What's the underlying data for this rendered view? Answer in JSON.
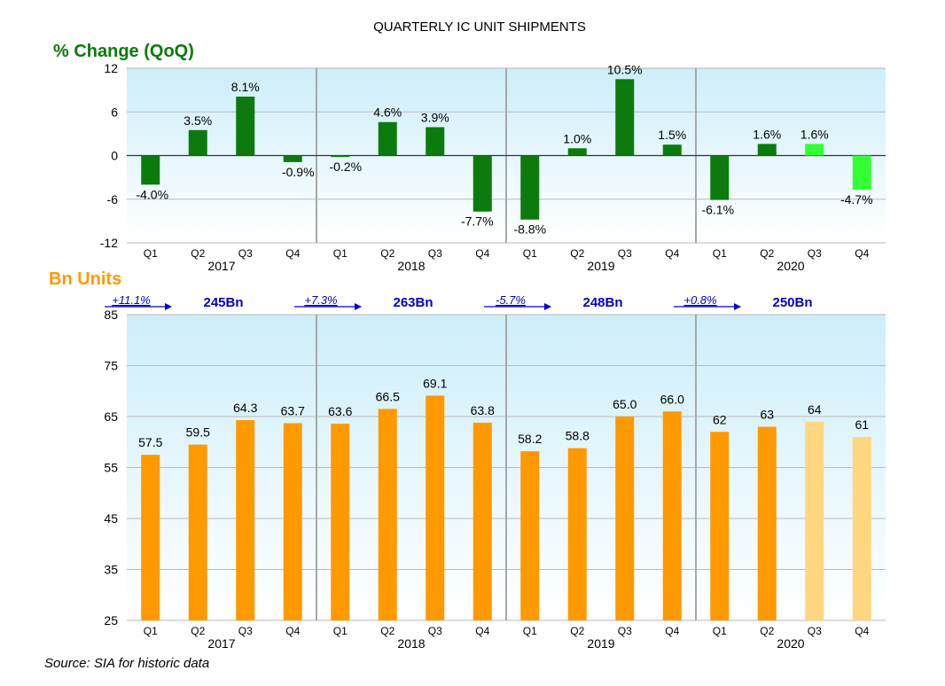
{
  "title": "QUARTERLY IC UNIT SHIPMENTS",
  "source": "Source: SIA for historic data",
  "colors": {
    "panel_top": "#cdeefa",
    "panel_bottom": "#ffffff",
    "dark_green": "#0d7a0d",
    "light_green": "#33ff33",
    "orange": "#ff9900",
    "light_orange": "#ffd780",
    "green_title": "#0a7a0a",
    "orange_title": "#ff9900",
    "blue": "#0000cc"
  },
  "chart_data": [
    {
      "type": "bar",
      "title": "% Change (QoQ)",
      "ylim": [
        -12,
        12
      ],
      "yticks": [
        "12",
        "6",
        "0",
        "-6",
        "-12"
      ],
      "categories": [
        "Q1",
        "Q2",
        "Q3",
        "Q4",
        "Q1",
        "Q2",
        "Q3",
        "Q4",
        "Q1",
        "Q2",
        "Q3",
        "Q4",
        "Q1",
        "Q2",
        "Q3",
        "Q4"
      ],
      "years": [
        "2017",
        "2018",
        "2019",
        "2020"
      ],
      "values": [
        -4.0,
        3.5,
        8.1,
        -0.9,
        -0.2,
        4.6,
        3.9,
        -7.7,
        -8.8,
        1.0,
        10.5,
        1.5,
        -6.1,
        1.6,
        1.6,
        -4.7
      ],
      "labels": [
        "-4.0%",
        "3.5%",
        "8.1%",
        "-0.9%",
        "-0.2%",
        "4.6%",
        "3.9%",
        "-7.7%",
        "-8.8%",
        "1.0%",
        "10.5%",
        "1.5%",
        "-6.1%",
        "1.6%",
        "1.6%",
        "-4.7%"
      ],
      "forecast": [
        false,
        false,
        false,
        false,
        false,
        false,
        false,
        false,
        false,
        false,
        false,
        false,
        false,
        false,
        true,
        true
      ]
    },
    {
      "type": "bar",
      "title": "Bn Units",
      "ylim": [
        25,
        85
      ],
      "yticks": [
        "85",
        "75",
        "65",
        "55",
        "45",
        "35",
        "25"
      ],
      "categories": [
        "Q1",
        "Q2",
        "Q3",
        "Q4",
        "Q1",
        "Q2",
        "Q3",
        "Q4",
        "Q1",
        "Q2",
        "Q3",
        "Q4",
        "Q1",
        "Q2",
        "Q3",
        "Q4"
      ],
      "years": [
        "2017",
        "2018",
        "2019",
        "2020"
      ],
      "values": [
        57.5,
        59.5,
        64.3,
        63.7,
        63.6,
        66.5,
        69.1,
        63.8,
        58.2,
        58.8,
        65.0,
        66.0,
        62,
        63,
        64,
        61
      ],
      "labels": [
        "57.5",
        "59.5",
        "64.3",
        "63.7",
        "63.6",
        "66.5",
        "69.1",
        "63.8",
        "58.2",
        "58.8",
        "65.0",
        "66.0",
        "62",
        "63",
        "64",
        "61"
      ],
      "forecast": [
        false,
        false,
        false,
        false,
        false,
        false,
        false,
        false,
        false,
        false,
        false,
        false,
        false,
        false,
        true,
        true
      ],
      "annual_growth": [
        "+11.1%",
        "+7.3%",
        "-5.7%",
        "+0.8%"
      ],
      "annual_totals": [
        "245Bn",
        "263Bn",
        "248Bn",
        "250Bn"
      ]
    }
  ]
}
